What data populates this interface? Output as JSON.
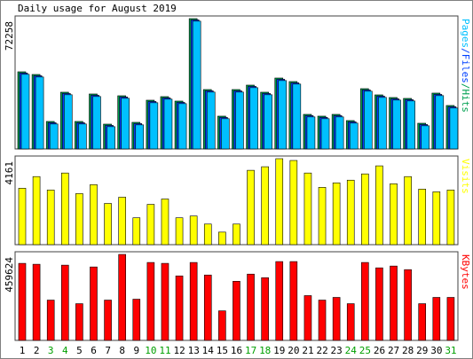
{
  "chart_data": [
    {
      "type": "bar",
      "title": "Daily usage for August 2019",
      "categories": [
        "1",
        "2",
        "3",
        "4",
        "5",
        "6",
        "7",
        "8",
        "9",
        "10",
        "11",
        "12",
        "13",
        "14",
        "15",
        "16",
        "17",
        "18",
        "19",
        "20",
        "21",
        "22",
        "23",
        "24",
        "25",
        "26",
        "27",
        "28",
        "29",
        "30",
        "31"
      ],
      "legend_separator": "/",
      "series": [
        {
          "name": "Hits",
          "color": "#00a050",
          "values": [
            42770,
            41290,
            15240,
            31460,
            15240,
            30480,
            13760,
            29490,
            14750,
            27030,
            29000,
            26540,
            72258,
            32930,
            18190,
            32930,
            35390,
            31460,
            39320,
            37360,
            19170,
            18190,
            19170,
            15730,
            33420,
            29980,
            28510,
            28020,
            14250,
            30970,
            24090
          ]
        },
        {
          "name": "Files",
          "color": "#0040ff",
          "values": [
            42070,
            40590,
            14540,
            30760,
            14540,
            29780,
            13060,
            28790,
            14050,
            26330,
            28300,
            25840,
            71558,
            32230,
            17490,
            32230,
            34690,
            30760,
            38620,
            36660,
            18470,
            17490,
            18470,
            15030,
            32720,
            29280,
            27810,
            27320,
            13550,
            30270,
            23390
          ]
        },
        {
          "name": "Pages",
          "color": "#00c0ff",
          "values": [
            41370,
            39890,
            13840,
            30060,
            13840,
            29080,
            12360,
            28090,
            13350,
            25630,
            27600,
            25140,
            70858,
            31530,
            16790,
            31530,
            33990,
            30060,
            37920,
            35960,
            17770,
            16790,
            17770,
            14330,
            32020,
            28580,
            27110,
            26620,
            12850,
            29570,
            22690
          ]
        }
      ],
      "ylim": [
        0,
        72258
      ],
      "yticks": [
        72258
      ]
    },
    {
      "type": "bar",
      "categories": [
        "1",
        "2",
        "3",
        "4",
        "5",
        "6",
        "7",
        "8",
        "9",
        "10",
        "11",
        "12",
        "13",
        "14",
        "15",
        "16",
        "17",
        "18",
        "19",
        "20",
        "21",
        "22",
        "23",
        "24",
        "25",
        "26",
        "27",
        "28",
        "29",
        "30",
        "31"
      ],
      "series": [
        {
          "name": "Visits",
          "color": "#ffff00",
          "values": [
            2731,
            3294,
            2644,
            3467,
            2471,
            2904,
            1994,
            2297,
            1300,
            1950,
            2210,
            1300,
            1387,
            997,
            607,
            997,
            3598,
            3771,
            4161,
            4074,
            3467,
            2774,
            2991,
            3121,
            3424,
            3814,
            2947,
            3294,
            2687,
            2557,
            2644
          ]
        }
      ],
      "ylim": [
        0,
        4161
      ],
      "yticks": [
        4161
      ]
    },
    {
      "type": "bar",
      "categories": [
        "1",
        "2",
        "3",
        "4",
        "5",
        "6",
        "7",
        "8",
        "9",
        "10",
        "11",
        "12",
        "13",
        "14",
        "15",
        "16",
        "17",
        "18",
        "19",
        "20",
        "21",
        "22",
        "23",
        "24",
        "25",
        "26",
        "27",
        "28",
        "29",
        "30",
        "31"
      ],
      "category_colors": [
        "#000000",
        "#000000",
        "#00a000",
        "#00a000",
        "#000000",
        "#000000",
        "#000000",
        "#000000",
        "#000000",
        "#00a000",
        "#00a000",
        "#000000",
        "#000000",
        "#000000",
        "#000000",
        "#000000",
        "#00a000",
        "#00a000",
        "#000000",
        "#000000",
        "#000000",
        "#000000",
        "#000000",
        "#00a000",
        "#00a000",
        "#000000",
        "#000000",
        "#000000",
        "#000000",
        "#000000",
        "#00a000"
      ],
      "series": [
        {
          "name": "KBytes",
          "color": "#ff0000",
          "values": [
            411746,
            406959,
            215449,
            402171,
            196295,
            392596,
            215449,
            459624,
            220237,
            416534,
            411746,
            344718,
            416534,
            349506,
            157995,
            315991,
            354293,
            335143,
            421322,
            421322,
            239388,
            215449,
            229812,
            196295,
            416534,
            387808,
            397383,
            378234,
            196295,
            229812,
            229812
          ]
        }
      ],
      "ylim": [
        0,
        459624
      ],
      "yticks": [
        459624
      ]
    }
  ]
}
